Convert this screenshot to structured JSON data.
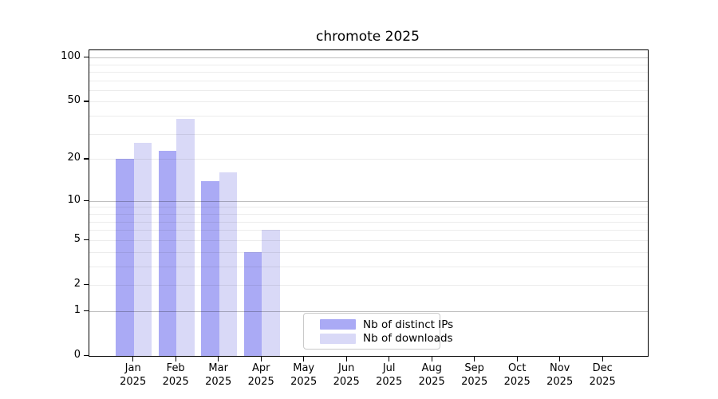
{
  "title": "chromote 2025",
  "chart_data": {
    "type": "bar",
    "title": "chromote 2025",
    "categories": [
      "Jan",
      "Feb",
      "Mar",
      "Apr",
      "May",
      "Jun",
      "Jul",
      "Aug",
      "Sep",
      "Oct",
      "Nov",
      "Dec"
    ],
    "category_year": "2025",
    "series": [
      {
        "name": "Nb of distinct IPs",
        "color": "#aaaaf5",
        "values": [
          20,
          23,
          14,
          4,
          0,
          0,
          0,
          0,
          0,
          0,
          0,
          0
        ]
      },
      {
        "name": "Nb of downloads",
        "color": "#d9d9f7",
        "values": [
          26,
          38,
          16,
          6,
          0,
          0,
          0,
          0,
          0,
          0,
          0,
          0
        ]
      }
    ],
    "yscale": "log1p",
    "yticks": [
      0,
      1,
      2,
      5,
      10,
      20,
      50,
      100
    ],
    "ylim": [
      0,
      112
    ],
    "xlabel": "",
    "ylabel": "",
    "grid": "horizontal; light minor lines at 2-9 per decade, darker lines at 1, 10, 100",
    "legend_position": "inside lower center"
  }
}
